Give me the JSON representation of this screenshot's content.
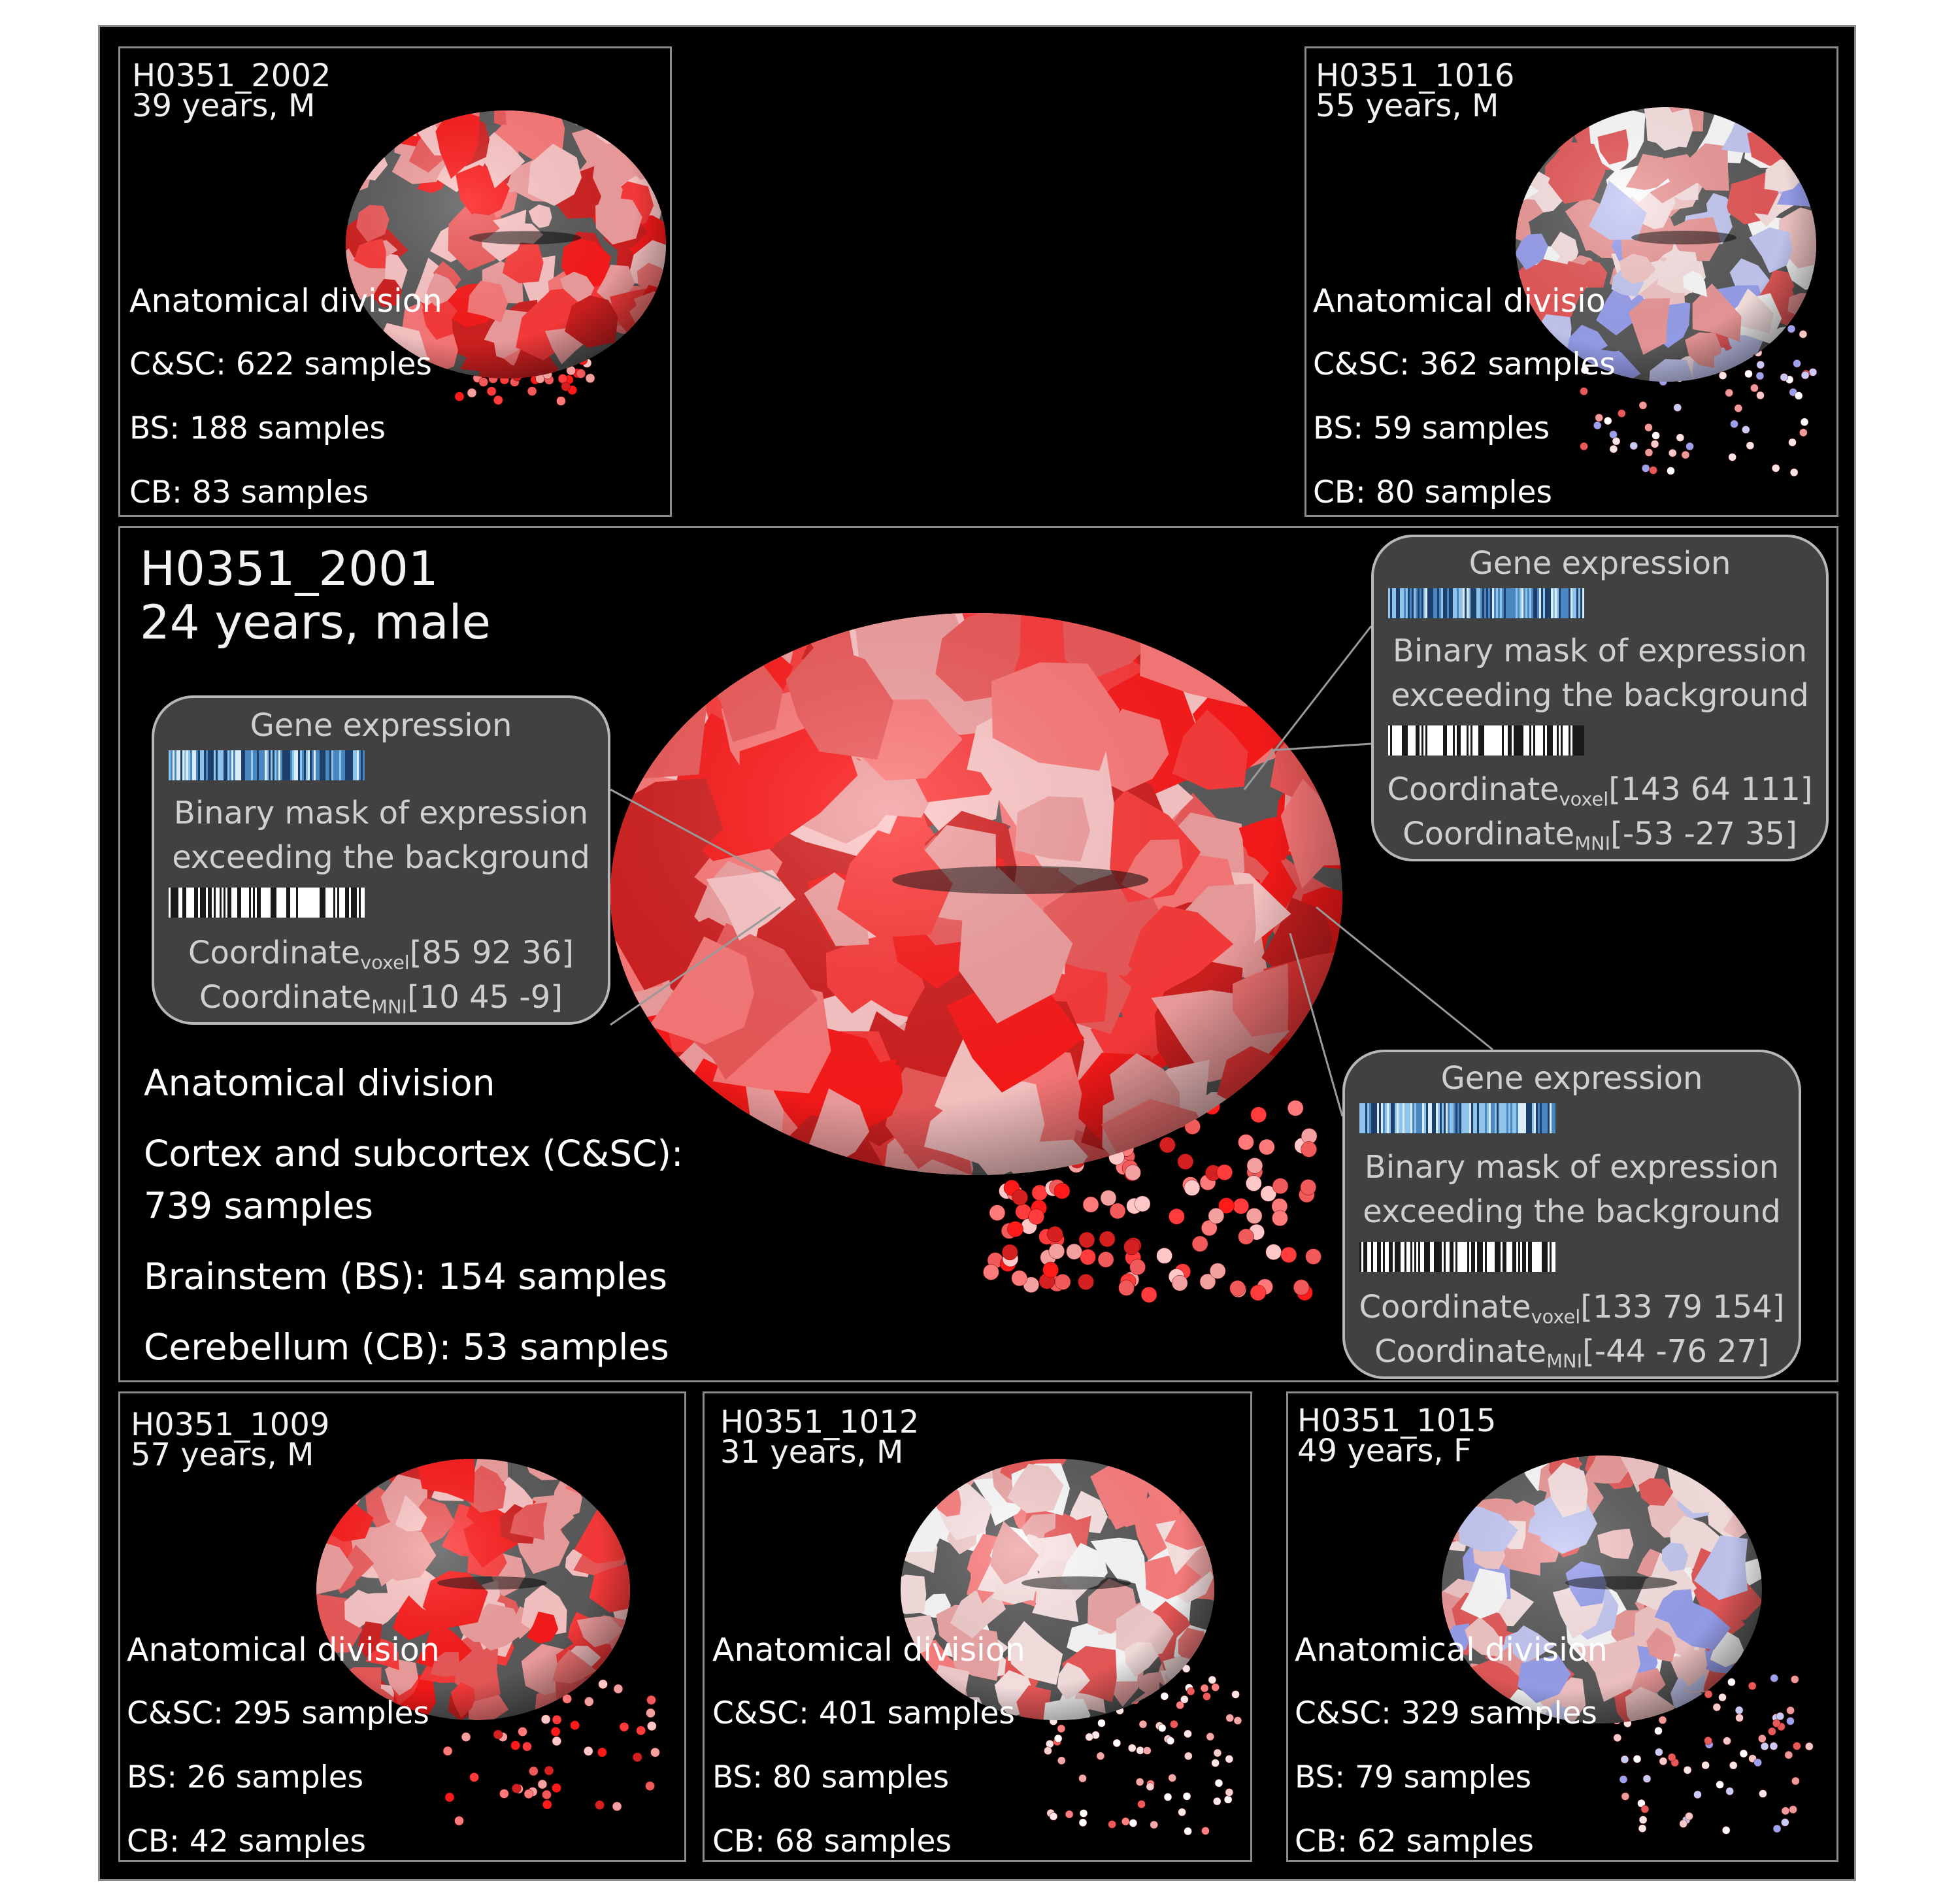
{
  "colors": {
    "background": "#000000",
    "panel_border": "#8a8a8a",
    "cortex_gray": "#5c5c5c",
    "high_expression": "#ff1a1a",
    "low_expression": "#9aa2f0",
    "callout_fill": "#6a6a6a"
  },
  "main": {
    "donor_id": "H0351_2001",
    "donor_info": "24 years, male",
    "division_heading": "Anatomical division",
    "csc_line1": "Cortex and subcortex (C&SC):",
    "csc_line2": "739 samples",
    "bs_line": "Brainstem (BS): 154 samples",
    "cb_line": "Cerebellum (CB): 53 samples"
  },
  "callouts": [
    {
      "title": "Gene expression",
      "mask_line1": "Binary mask of expression",
      "mask_line2": "exceeding the background",
      "coord_label": "Coordinate",
      "voxel_sub": "voxel",
      "voxel_value": "[85 92 36]",
      "mni_sub": "MNI",
      "mni_value": "[10 45 -9]"
    },
    {
      "title": "Gene expression",
      "mask_line1": "Binary mask of expression",
      "mask_line2": "exceeding the background",
      "coord_label": "Coordinate",
      "voxel_sub": "voxel",
      "voxel_value": "[143 64 111]",
      "mni_sub": "MNI",
      "mni_value": "[-53 -27 35]"
    },
    {
      "title": "Gene expression",
      "mask_line1": "Binary mask of expression",
      "mask_line2": "exceeding the background",
      "coord_label": "Coordinate",
      "voxel_sub": "voxel",
      "voxel_value": "[133 79 154]",
      "mni_sub": "MNI",
      "mni_value": "[-44 -76 27]"
    }
  ],
  "donors": [
    {
      "id": "H0351_2002",
      "info": "39 years, M",
      "heading": "Anatomical division",
      "csc": "C&SC: 622 samples",
      "bs": "BS: 188 samples",
      "cb": "CB: 83 samples",
      "palette": "red"
    },
    {
      "id": "H0351_1016",
      "info": "55 years, M",
      "heading": "Anatomical divisio",
      "csc": "C&SC: 362 samples",
      "bs": "BS: 59 samples",
      "cb": "CB: 80 samples",
      "palette": "mixed"
    },
    {
      "id": "H0351_1009",
      "info": "57 years, M",
      "heading": "Anatomical division",
      "csc": "C&SC: 295 samples",
      "bs": "BS: 26 samples",
      "cb": "CB: 42 samples",
      "palette": "red"
    },
    {
      "id": "H0351_1012",
      "info": "31 years, M",
      "heading": "Anatomical division",
      "csc": "C&SC: 401 samples",
      "bs": "BS: 80 samples",
      "cb": "CB: 68 samples",
      "palette": "pale"
    },
    {
      "id": "H0351_1015",
      "info": "49 years, F",
      "heading": "Anatomical division",
      "csc": "C&SC: 329 samples",
      "bs": "BS: 79 samples",
      "cb": "CB: 62 samples",
      "palette": "mixed"
    }
  ]
}
